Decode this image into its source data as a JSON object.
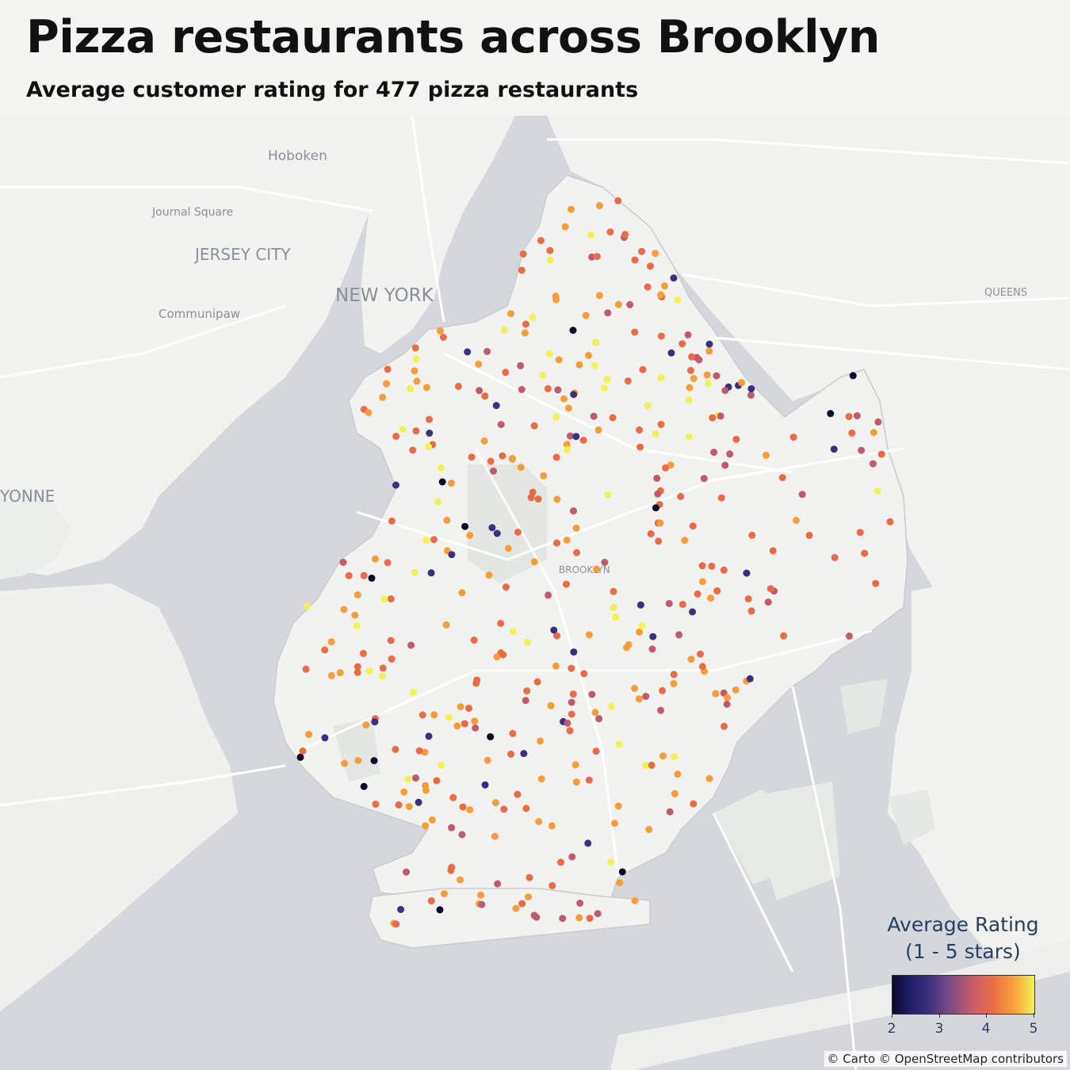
{
  "header": {
    "title": "Pizza restaurants across Brooklyn",
    "subtitle": "Average customer rating for 477 pizza restaurants"
  },
  "map": {
    "place_labels": {
      "hoboken": "Hoboken",
      "journal_square": "Journal Square",
      "jersey_city": "JERSEY CITY",
      "new_york": "NEW YORK",
      "communipaw": "Communipaw",
      "queens": "QUEENS",
      "bayonne": "YONNE",
      "brooklyn": "BROOKLYN"
    },
    "colors": {
      "water": "#d4d8dc",
      "land": "#f2f2f0",
      "park": "#e4e8e2",
      "road": "#ffffff",
      "rating_scale": [
        "#0d0829",
        "#3b2f80",
        "#c25a6e",
        "#eb6b47",
        "#f99d3a",
        "#f2f254"
      ]
    }
  },
  "legend": {
    "title_line1": "Average Rating",
    "title_line2": "(1 - 5 stars)",
    "ticks": [
      "2",
      "3",
      "4",
      "5"
    ],
    "range": [
      2,
      5
    ]
  },
  "attribution": "© Carto © OpenStreetMap contributors",
  "chart_data": {
    "type": "scatter",
    "title": "Pizza restaurants across Brooklyn",
    "subtitle": "Average customer rating for 477 pizza restaurants",
    "color_scale": {
      "title": "Average Rating (1 - 5 stars)",
      "min": 2,
      "max": 5,
      "ticks": [
        2,
        3,
        4,
        5
      ]
    }
  }
}
